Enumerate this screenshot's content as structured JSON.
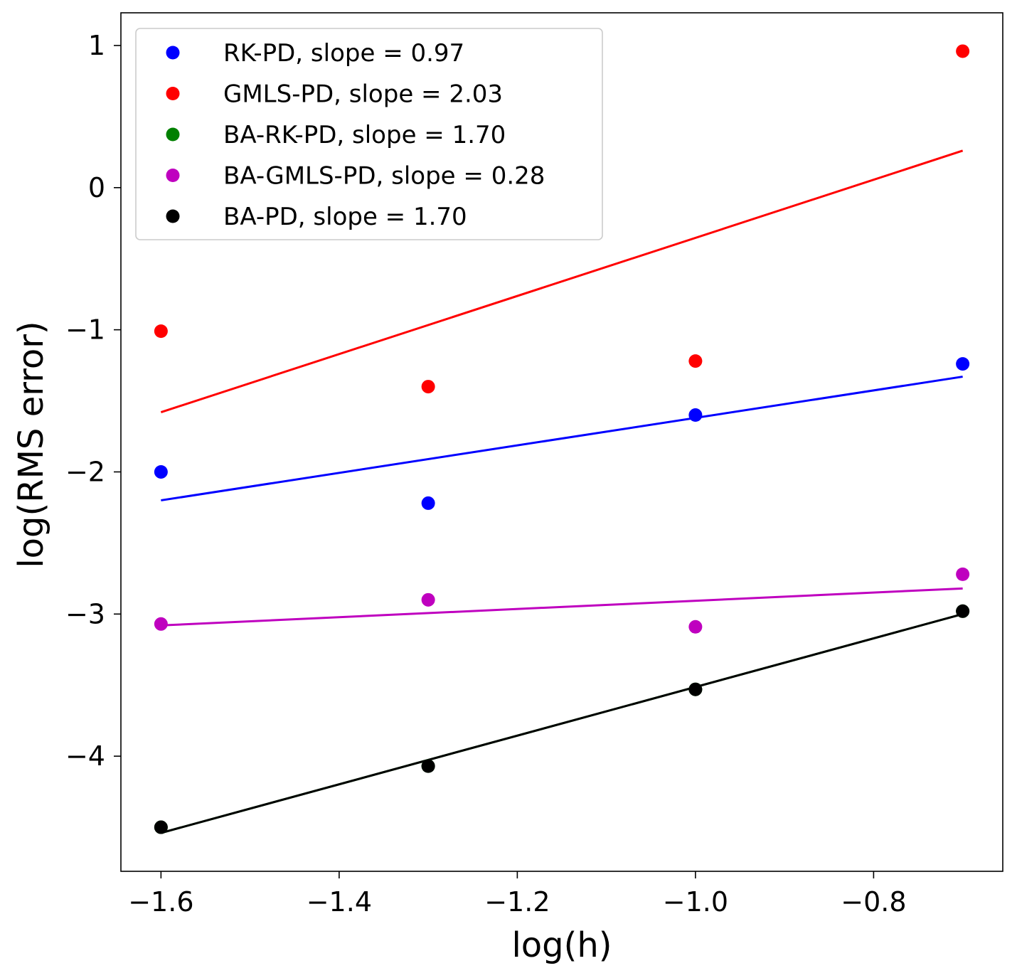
{
  "chart_data": {
    "type": "scatter",
    "xlabel": "log(h)",
    "ylabel": "log(RMS error)",
    "xlim": [
      -1.645,
      -0.655
    ],
    "ylim": [
      -4.81,
      1.23
    ],
    "xticks": [
      -1.6,
      -1.4,
      -1.2,
      -1.0,
      -0.8
    ],
    "xtick_labels": [
      "−1.6",
      "−1.4",
      "−1.2",
      "−1.0",
      "−0.8"
    ],
    "yticks": [
      1,
      0,
      -1,
      -2,
      -3,
      -4
    ],
    "ytick_labels": [
      "1",
      "0",
      "−1",
      "−2",
      "−3",
      "−4"
    ],
    "legend_position": "upper-left",
    "x": [
      -1.6,
      -1.3,
      -1.0,
      -0.7
    ],
    "series": [
      {
        "name": "RK-PD",
        "legend_label": "RK-PD, slope = 0.97",
        "color": "#0000ff",
        "y": [
          -2.0,
          -2.22,
          -1.6,
          -1.24
        ],
        "fit": {
          "x": [
            -1.6,
            -0.7
          ],
          "y": [
            -2.2,
            -1.33
          ]
        }
      },
      {
        "name": "GMLS-PD",
        "legend_label": "GMLS-PD, slope = 2.03",
        "color": "#ff0000",
        "y": [
          -1.01,
          -1.4,
          -1.22,
          0.96
        ],
        "fit": {
          "x": [
            -1.6,
            -0.7
          ],
          "y": [
            -1.58,
            0.26
          ]
        }
      },
      {
        "name": "BA-RK-PD",
        "legend_label": "BA-RK-PD, slope = 1.70",
        "color": "#008000",
        "y": [
          -4.5,
          -4.07,
          -3.53,
          -2.98
        ],
        "fit": {
          "x": [
            -1.6,
            -0.7
          ],
          "y": [
            -4.54,
            -3.0
          ]
        }
      },
      {
        "name": "BA-GMLS-PD",
        "legend_label": "BA-GMLS-PD, slope = 0.28",
        "color": "#bf00bf",
        "y": [
          -3.07,
          -2.9,
          -3.09,
          -2.72
        ],
        "fit": {
          "x": [
            -1.6,
            -0.7
          ],
          "y": [
            -3.08,
            -2.82
          ]
        }
      },
      {
        "name": "BA-PD",
        "legend_label": "BA-PD, slope = 1.70",
        "color": "#000000",
        "y": [
          -4.5,
          -4.07,
          -3.53,
          -2.98
        ],
        "fit": {
          "x": [
            -1.6,
            -0.7
          ],
          "y": [
            -4.54,
            -3.0
          ]
        }
      }
    ]
  }
}
